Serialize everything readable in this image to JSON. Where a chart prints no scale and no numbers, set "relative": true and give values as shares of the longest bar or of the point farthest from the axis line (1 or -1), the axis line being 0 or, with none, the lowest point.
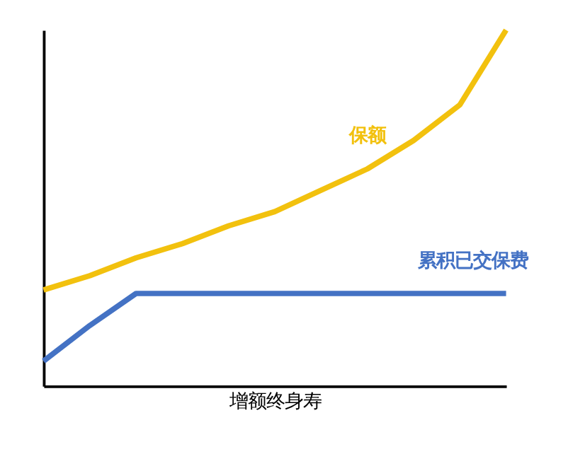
{
  "chart_data": {
    "type": "line",
    "relative": true,
    "xlabel": "增额终身寿",
    "categories": [
      null,
      null,
      null,
      null,
      null,
      null,
      null,
      null,
      null,
      null,
      null
    ],
    "series": [
      {
        "name": "保额",
        "color": "#f2c10e",
        "values": [
          0.27,
          0.31,
          0.36,
          0.4,
          0.45,
          0.49,
          0.55,
          0.61,
          0.69,
          0.79,
          1
        ]
      },
      {
        "name": "累积已交保费",
        "color": "#4472c4",
        "values": [
          0.07,
          0.17,
          0.26,
          0.26,
          0.26,
          0.26,
          0.26,
          0.26,
          0.26,
          0.26,
          0.26
        ]
      }
    ],
    "legend": false,
    "grid": false,
    "marker": "none",
    "line_style": "solid"
  }
}
